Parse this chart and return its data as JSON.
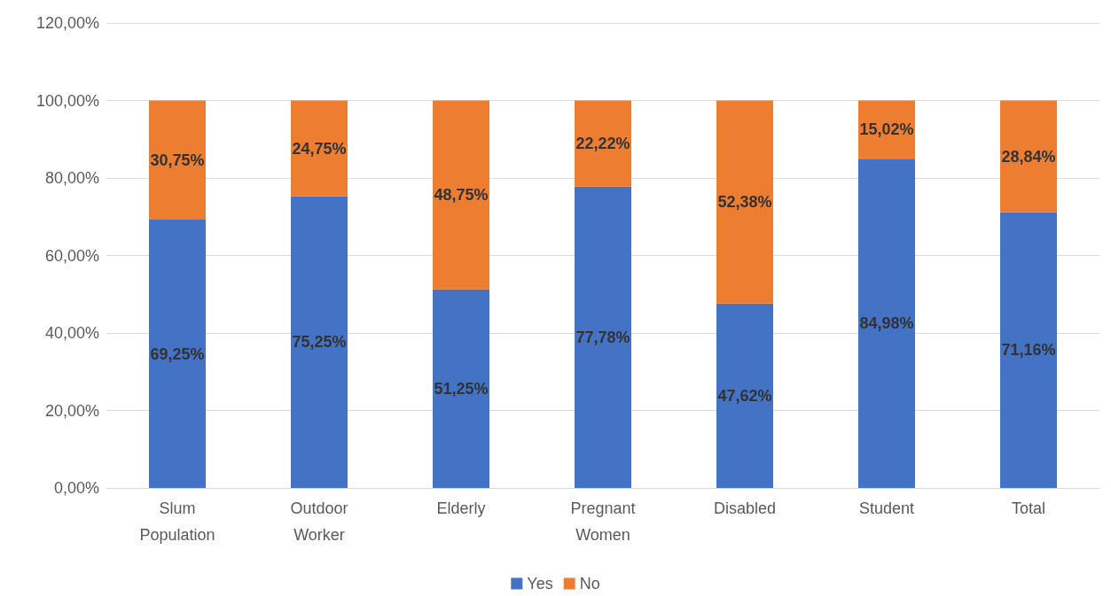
{
  "chart_data": {
    "type": "bar",
    "stacked": true,
    "categories": [
      "Slum Population",
      "Outdoor Worker",
      "Elderly",
      "Pregnant Women",
      "Disabled",
      "Student",
      "Total"
    ],
    "series": [
      {
        "name": "Yes",
        "color": "#4472c4",
        "values": [
          69.25,
          75.25,
          51.25,
          77.78,
          47.62,
          84.98,
          71.16
        ],
        "value_labels": [
          "69,25%",
          "75,25%",
          "51,25%",
          "77,78%",
          "47,62%",
          "84,98%",
          "71,16%"
        ]
      },
      {
        "name": "No",
        "color": "#ed7d31",
        "values": [
          30.75,
          24.75,
          48.75,
          22.22,
          52.38,
          15.02,
          28.84
        ],
        "value_labels": [
          "30,75%",
          "24,75%",
          "48,75%",
          "22,22%",
          "52,38%",
          "15,02%",
          "28,84%"
        ]
      }
    ],
    "ylim": [
      0,
      120
    ],
    "yticks": [
      {
        "value": 0,
        "label": "0,00%"
      },
      {
        "value": 20,
        "label": "20,00%"
      },
      {
        "value": 40,
        "label": "40,00%"
      },
      {
        "value": 60,
        "label": "60,00%"
      },
      {
        "value": 80,
        "label": "80,00%"
      },
      {
        "value": 100,
        "label": "100,00%"
      },
      {
        "value": 120,
        "label": "120,00%"
      }
    ],
    "grid": "y",
    "legend": "bottom"
  }
}
